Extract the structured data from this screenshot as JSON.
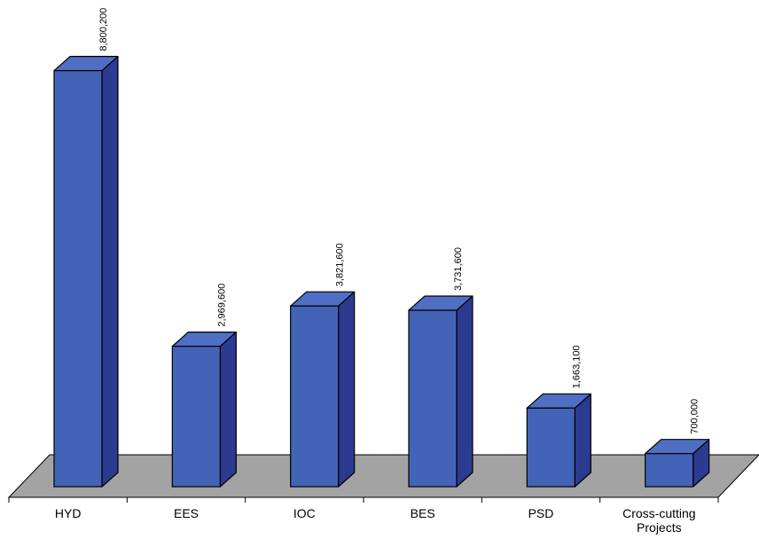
{
  "chart_data": {
    "type": "bar",
    "title": "",
    "xlabel": "",
    "ylabel": "",
    "categories": [
      "HYD",
      "EES",
      "IOC",
      "BES",
      "PSD",
      "Cross-cutting\nProjects"
    ],
    "values": [
      8800200,
      2969600,
      3821600,
      3731600,
      1663100,
      700000
    ],
    "value_labels": [
      "8,800,200",
      "2,969,600",
      "3,821,600",
      "3,731,600",
      "1,663,100",
      "700,000"
    ],
    "ylim": [
      0,
      9000000
    ],
    "grid": false,
    "legend": "none",
    "style": "3d-column"
  },
  "colors": {
    "bar_front": "#4363b6",
    "bar_top": "#4f6fc4",
    "bar_side": "#2c3a8f",
    "floor": "#a3a3a3",
    "stroke": "#000000"
  }
}
